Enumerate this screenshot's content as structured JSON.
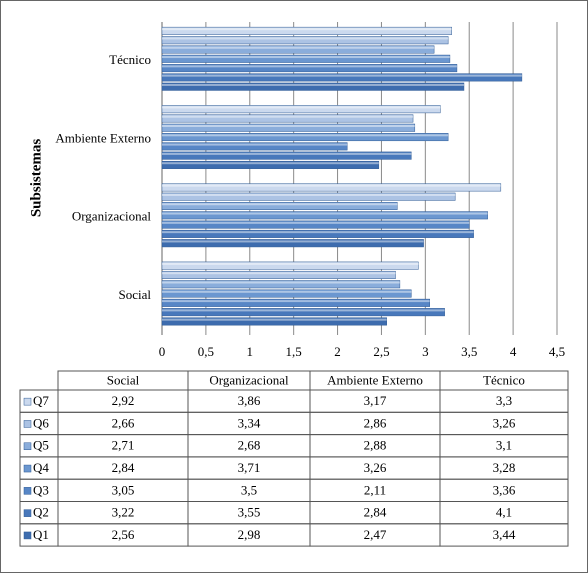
{
  "chart_data": {
    "type": "bar",
    "orientation": "horizontal",
    "y_axis_label": "Subsistemas",
    "categories": [
      "Social",
      "Organizacional",
      "Ambiente Externo",
      "Técnico"
    ],
    "series": [
      {
        "name": "Q1",
        "color": "#3d6cae",
        "values": [
          2.56,
          2.98,
          2.47,
          3.44
        ],
        "value_labels": [
          "2,56",
          "2,98",
          "2,47",
          "3,44"
        ]
      },
      {
        "name": "Q2",
        "color": "#4878bb",
        "values": [
          3.22,
          3.55,
          2.84,
          4.1
        ],
        "value_labels": [
          "3,22",
          "3,55",
          "2,84",
          "4,1"
        ]
      },
      {
        "name": "Q3",
        "color": "#5786c6",
        "values": [
          3.05,
          3.5,
          2.11,
          3.36
        ],
        "value_labels": [
          "3,05",
          "3,5",
          "2,11",
          "3,36"
        ]
      },
      {
        "name": "Q4",
        "color": "#6b97d0",
        "values": [
          2.84,
          3.71,
          3.26,
          3.28
        ],
        "value_labels": [
          "2,84",
          "3,71",
          "3,26",
          "3,28"
        ]
      },
      {
        "name": "Q5",
        "color": "#8aaddb",
        "values": [
          2.71,
          2.68,
          2.88,
          3.1
        ],
        "value_labels": [
          "2,71",
          "2,68",
          "2,88",
          "3,1"
        ]
      },
      {
        "name": "Q6",
        "color": "#acc3e4",
        "values": [
          2.66,
          3.34,
          2.86,
          3.26
        ],
        "value_labels": [
          "2,66",
          "3,34",
          "2,86",
          "3,26"
        ]
      },
      {
        "name": "Q7",
        "color": "#cbd9ee",
        "values": [
          2.92,
          3.86,
          3.17,
          3.3
        ],
        "value_labels": [
          "2,92",
          "3,86",
          "3,17",
          "3,3"
        ]
      }
    ],
    "xlim": [
      0,
      4.5
    ],
    "xticks": [
      0,
      {
        "value": 0.5,
        "label": "0,5"
      },
      1,
      {
        "value": 1.5,
        "label": "1,5"
      },
      2,
      {
        "value": 2.5,
        "label": "2,5"
      },
      3,
      {
        "value": 3.5,
        "label": "3,5"
      },
      4,
      {
        "value": 4.5,
        "label": "4,5"
      }
    ],
    "grid": true
  }
}
